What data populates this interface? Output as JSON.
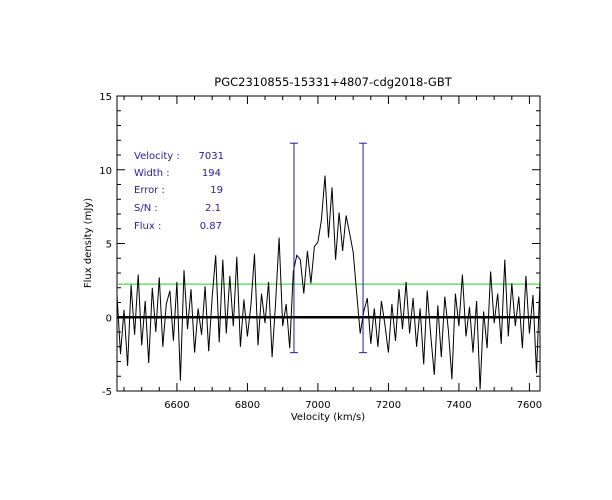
{
  "chart_data": {
    "type": "line",
    "title": "PGC2310855-15331+4807-cdg2018-GBT",
    "xlabel": "Velocity (km/s)",
    "ylabel": "Flux density (mJy)",
    "xlim": [
      6430,
      7630
    ],
    "ylim": [
      -5,
      15
    ],
    "x_ticks": [
      6600,
      6800,
      7000,
      7200,
      7400,
      7600
    ],
    "y_ticks": [
      -5,
      0,
      5,
      10,
      15
    ],
    "zero_line": 0,
    "rms_level": 2.25,
    "window_markers": {
      "left": 6932,
      "right": 7128,
      "y_low": -2.4,
      "y_high": 11.8
    },
    "info": [
      {
        "label": "Velocity :",
        "value": "7031"
      },
      {
        "label": "Width    :",
        "value": "194"
      },
      {
        "label": "Error    :",
        "value": "19"
      },
      {
        "label": "S/N      :",
        "value": "2.1"
      },
      {
        "label": "Flux     :",
        "value": "0.87"
      }
    ],
    "series": [
      {
        "name": "spectrum",
        "x": [
          6430,
          6440,
          6450,
          6460,
          6470,
          6480,
          6490,
          6500,
          6510,
          6520,
          6530,
          6540,
          6550,
          6560,
          6570,
          6580,
          6590,
          6600,
          6610,
          6620,
          6630,
          6640,
          6650,
          6660,
          6670,
          6680,
          6690,
          6700,
          6710,
          6720,
          6730,
          6740,
          6750,
          6760,
          6770,
          6780,
          6790,
          6800,
          6810,
          6820,
          6830,
          6840,
          6850,
          6860,
          6870,
          6880,
          6890,
          6900,
          6910,
          6920,
          6930,
          6940,
          6950,
          6960,
          6970,
          6980,
          6990,
          7000,
          7010,
          7020,
          7030,
          7040,
          7050,
          7060,
          7070,
          7080,
          7090,
          7100,
          7110,
          7120,
          7130,
          7140,
          7150,
          7160,
          7170,
          7180,
          7190,
          7200,
          7210,
          7220,
          7230,
          7240,
          7250,
          7260,
          7270,
          7280,
          7290,
          7300,
          7310,
          7320,
          7330,
          7340,
          7350,
          7360,
          7370,
          7380,
          7390,
          7400,
          7410,
          7420,
          7430,
          7440,
          7450,
          7460,
          7470,
          7480,
          7490,
          7500,
          7510,
          7520,
          7530,
          7540,
          7550,
          7560,
          7570,
          7580,
          7590,
          7600,
          7610,
          7620,
          7630
        ],
        "values": [
          1.5,
          -2.5,
          0.5,
          -3.3,
          2.2,
          -1.2,
          2.9,
          -1.9,
          1.1,
          -3.1,
          2.0,
          -1.0,
          2.7,
          -2.0,
          0.9,
          1.8,
          -1.6,
          2.4,
          -4.3,
          3.2,
          -0.8,
          1.9,
          -2.4,
          0.6,
          -1.2,
          2.1,
          -2.3,
          1.4,
          4.2,
          -1.7,
          3.9,
          -1.1,
          2.8,
          -0.6,
          4.1,
          -2.0,
          1.2,
          -1.3,
          0.8,
          4.3,
          -1.9,
          1.6,
          -0.4,
          2.4,
          -2.7,
          1.0,
          5.4,
          -0.6,
          0.9,
          -2.1,
          3.1,
          4.2,
          3.9,
          1.6,
          4.5,
          2.3,
          4.8,
          5.1,
          6.6,
          9.6,
          5.4,
          8.8,
          3.9,
          7.1,
          4.5,
          6.9,
          5.7,
          4.4,
          1.6,
          -1.1,
          0.4,
          1.3,
          -1.8,
          0.6,
          -2.0,
          1.1,
          -0.5,
          -2.4,
          0.9,
          -1.6,
          1.9,
          -0.8,
          2.4,
          -1.1,
          1.3,
          -2.0,
          0.6,
          -3.2,
          1.8,
          -1.2,
          -3.9,
          0.8,
          -2.7,
          1.4,
          -0.9,
          -4.2,
          1.6,
          -0.6,
          2.9,
          -1.3,
          0.7,
          -2.4,
          1.1,
          -4.9,
          0.4,
          -2.1,
          3.1,
          -0.4,
          1.6,
          -1.8,
          3.9,
          -1.3,
          2.3,
          -0.6,
          1.4,
          -2.1,
          2.8,
          -1.1,
          1.5,
          -3.8,
          2.4
        ]
      }
    ]
  }
}
